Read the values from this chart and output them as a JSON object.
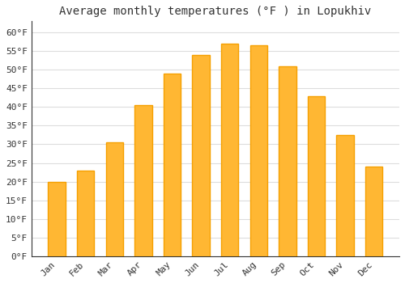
{
  "title": "Average monthly temperatures (°F ) in Lopukhiv",
  "months": [
    "Jan",
    "Feb",
    "Mar",
    "Apr",
    "May",
    "Jun",
    "Jul",
    "Aug",
    "Sep",
    "Oct",
    "Nov",
    "Dec"
  ],
  "values": [
    20.0,
    23.0,
    30.5,
    40.5,
    49.0,
    54.0,
    57.0,
    56.5,
    51.0,
    43.0,
    32.5,
    24.0
  ],
  "bar_color_light": "#FFB733",
  "bar_color_dark": "#F5A000",
  "background_color": "#FFFFFF",
  "plot_bg_color": "#FFFFFF",
  "grid_color": "#DDDDDD",
  "ylim": [
    0,
    63
  ],
  "yticks": [
    0,
    5,
    10,
    15,
    20,
    25,
    30,
    35,
    40,
    45,
    50,
    55,
    60
  ],
  "ytick_labels": [
    "0°F",
    "5°F",
    "10°F",
    "15°F",
    "20°F",
    "25°F",
    "30°F",
    "35°F",
    "40°F",
    "45°F",
    "50°F",
    "55°F",
    "60°F"
  ],
  "title_fontsize": 10,
  "tick_fontsize": 8,
  "font_family": "monospace",
  "bar_width": 0.6,
  "axis_color": "#333333"
}
